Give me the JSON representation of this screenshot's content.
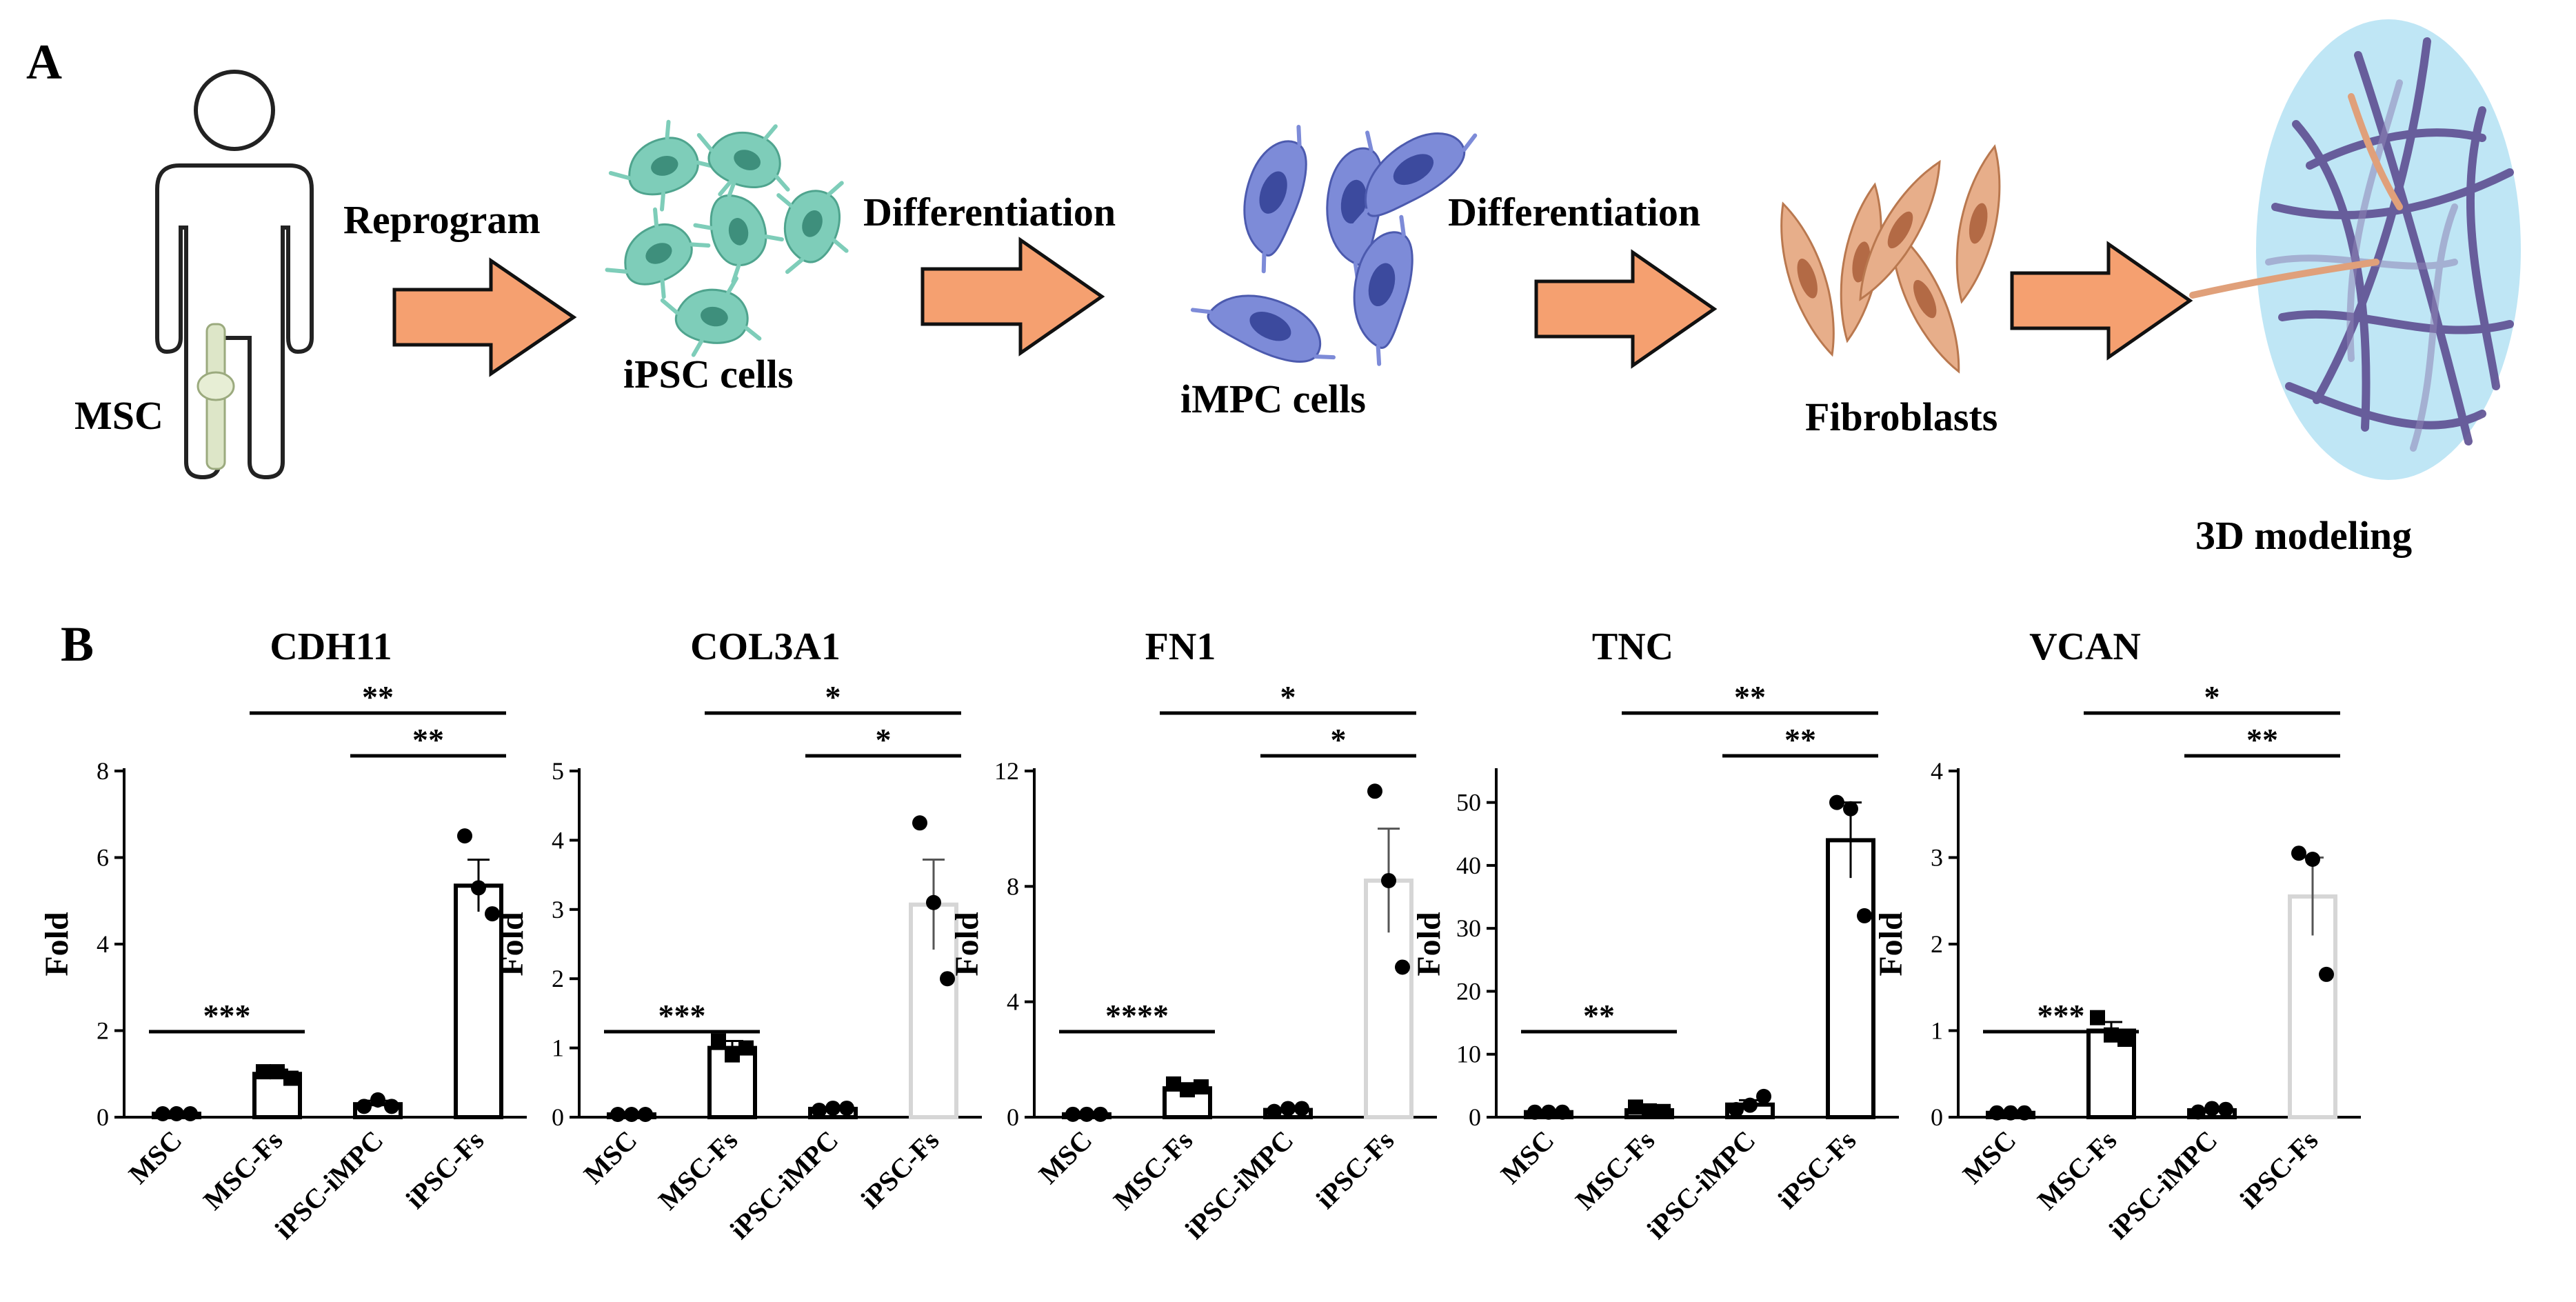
{
  "panels": {
    "a": "A",
    "b": "B"
  },
  "workflow": {
    "source_label": "MSC",
    "arrow_labels": [
      "Reprogram",
      "Differentiation",
      "Differentiation"
    ],
    "stages": [
      "iPSC cells",
      "iMPC cells",
      "Fibroblasts",
      "3D modeling"
    ],
    "colors": {
      "arrow": "#F5A070",
      "ipsc": "#76C8B4",
      "impc": "#6F7FD0",
      "fibro": "#E0A07A",
      "sphere": "#BFE6F5",
      "fiber": "#5E4F92"
    }
  },
  "chart_data": [
    {
      "type": "bar",
      "title": "CDH11",
      "ylabel": "Fold",
      "categories": [
        "MSC",
        "MSC-Fs",
        "iPSC-iMPC",
        "iPSC-Fs"
      ],
      "values": [
        0.08,
        1.0,
        0.3,
        5.35
      ],
      "sem": [
        0,
        0.1,
        0.08,
        0.6
      ],
      "points": [
        [
          0.08,
          0.08,
          0.08
        ],
        [
          1.05,
          1.05,
          0.9
        ],
        [
          0.25,
          0.4,
          0.25
        ],
        [
          6.5,
          5.3,
          4.7
        ]
      ],
      "ylim": [
        0,
        8
      ],
      "yticks": [
        0,
        2,
        4,
        6,
        8
      ],
      "bar_colors": [
        "#000000",
        "#000000",
        "#000000",
        "#000000"
      ],
      "markers": [
        "circle",
        "square",
        "circle",
        "circle"
      ],
      "sig": [
        {
          "from": 0,
          "to": 1,
          "label": "***"
        },
        {
          "from": 2,
          "to": 3,
          "label": "**"
        },
        {
          "from": 1,
          "to": 3,
          "label": "**"
        }
      ]
    },
    {
      "type": "bar",
      "title": "COL3A1",
      "ylabel": "Fold",
      "categories": [
        "MSC",
        "MSC-Fs",
        "iPSC-iMPC",
        "iPSC-Fs"
      ],
      "values": [
        0.04,
        1.0,
        0.12,
        3.07
      ],
      "sem": [
        0,
        0.1,
        0.02,
        0.65
      ],
      "points": [
        [
          0.04,
          0.04,
          0.04
        ],
        [
          1.1,
          0.9,
          1.0
        ],
        [
          0.1,
          0.13,
          0.13
        ],
        [
          4.25,
          3.1,
          2.0
        ]
      ],
      "ylim": [
        0,
        5
      ],
      "yticks": [
        0,
        1,
        2,
        3,
        4,
        5
      ],
      "bar_colors": [
        "#000000",
        "#000000",
        "#000000",
        "#D6D6D6"
      ],
      "markers": [
        "circle",
        "square",
        "circle",
        "circle"
      ],
      "sig": [
        {
          "from": 0,
          "to": 1,
          "label": "***"
        },
        {
          "from": 2,
          "to": 3,
          "label": "*"
        },
        {
          "from": 1,
          "to": 3,
          "label": "*"
        }
      ]
    },
    {
      "type": "bar",
      "title": "FN1",
      "ylabel": "Fold",
      "categories": [
        "MSC",
        "MSC-Fs",
        "iPSC-iMPC",
        "iPSC-Fs"
      ],
      "values": [
        0.1,
        1.0,
        0.25,
        8.2
      ],
      "sem": [
        0,
        0.15,
        0.05,
        1.8
      ],
      "points": [
        [
          0.1,
          0.1,
          0.1
        ],
        [
          1.15,
          0.95,
          1.05
        ],
        [
          0.2,
          0.3,
          0.3
        ],
        [
          11.3,
          8.2,
          5.2
        ]
      ],
      "ylim": [
        0,
        12
      ],
      "yticks": [
        0,
        4,
        8,
        12
      ],
      "bar_colors": [
        "#000000",
        "#000000",
        "#000000",
        "#D6D6D6"
      ],
      "markers": [
        "circle",
        "square",
        "circle",
        "circle"
      ],
      "sig": [
        {
          "from": 0,
          "to": 1,
          "label": "****"
        },
        {
          "from": 2,
          "to": 3,
          "label": "*"
        },
        {
          "from": 1,
          "to": 3,
          "label": "*"
        }
      ]
    },
    {
      "type": "bar",
      "title": "TNC",
      "ylabel": "Fold",
      "categories": [
        "MSC",
        "MSC-Fs",
        "iPSC-iMPC",
        "iPSC-Fs"
      ],
      "values": [
        0.8,
        1.1,
        2.0,
        44
      ],
      "sem": [
        0,
        0.2,
        0.7,
        6
      ],
      "points": [
        [
          0.8,
          0.8,
          0.8
        ],
        [
          1.6,
          1.0,
          0.9
        ],
        [
          1.2,
          1.9,
          3.3
        ],
        [
          50,
          49,
          32
        ]
      ],
      "ylim": [
        0,
        55
      ],
      "yticks": [
        0,
        10,
        20,
        30,
        40,
        50
      ],
      "bar_colors": [
        "#000000",
        "#000000",
        "#000000",
        "#000000"
      ],
      "markers": [
        "circle",
        "square",
        "circle",
        "circle"
      ],
      "sig": [
        {
          "from": 0,
          "to": 1,
          "label": "**"
        },
        {
          "from": 2,
          "to": 3,
          "label": "**"
        },
        {
          "from": 1,
          "to": 3,
          "label": "**"
        }
      ]
    },
    {
      "type": "bar",
      "title": "VCAN",
      "ylabel": "Fold",
      "categories": [
        "MSC",
        "MSC-Fs",
        "iPSC-iMPC",
        "iPSC-Fs"
      ],
      "values": [
        0.05,
        1.0,
        0.08,
        2.55
      ],
      "sem": [
        0,
        0.1,
        0.02,
        0.45
      ],
      "points": [
        [
          0.05,
          0.05,
          0.05
        ],
        [
          1.15,
          0.95,
          0.9
        ],
        [
          0.06,
          0.1,
          0.09
        ],
        [
          3.05,
          2.98,
          1.65
        ]
      ],
      "ylim": [
        0,
        4
      ],
      "yticks": [
        0,
        1,
        2,
        3,
        4
      ],
      "bar_colors": [
        "#000000",
        "#000000",
        "#000000",
        "#D6D6D6"
      ],
      "markers": [
        "circle",
        "square",
        "circle",
        "circle"
      ],
      "sig": [
        {
          "from": 0,
          "to": 1,
          "label": "***"
        },
        {
          "from": 2,
          "to": 3,
          "label": "**"
        },
        {
          "from": 1,
          "to": 3,
          "label": "*"
        }
      ]
    }
  ]
}
